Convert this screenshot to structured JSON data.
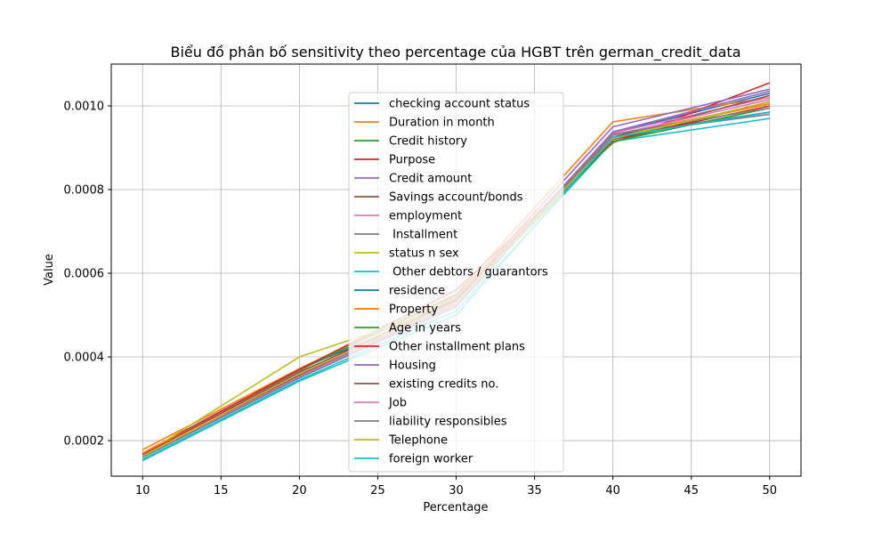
{
  "chart_data": {
    "type": "line",
    "title": "Biểu đồ phân bố sensitivity theo percentage của HGBT trên german_credit_data",
    "xlabel": "Percentage",
    "ylabel": "Value",
    "x": [
      10,
      20,
      30,
      40,
      50
    ],
    "xlim": [
      8,
      52
    ],
    "ylim": [
      0.000115,
      0.0011
    ],
    "xticks": [
      10,
      15,
      20,
      25,
      30,
      35,
      40,
      45,
      50
    ],
    "yticks": [
      0.0002,
      0.0004,
      0.0006,
      0.0008,
      0.001
    ],
    "ytick_labels": [
      "0.0002",
      "0.0004",
      "0.0006",
      "0.0008",
      "0.0010"
    ],
    "grid": true,
    "legend_position": "center-top",
    "series": [
      {
        "name": "checking account status",
        "color": "#1f77b4",
        "values": [
          0.000165,
          0.00037,
          0.00053,
          0.000935,
          0.00103
        ]
      },
      {
        "name": "Duration in month",
        "color": "#ff7f0e",
        "values": [
          0.000178,
          0.000372,
          0.00055,
          0.000962,
          0.00102
        ]
      },
      {
        "name": "Credit history",
        "color": "#2ca02c",
        "values": [
          0.000168,
          0.000368,
          0.000548,
          0.000915,
          0.00101
        ]
      },
      {
        "name": "Purpose",
        "color": "#d62728",
        "values": [
          0.00017,
          0.00037,
          0.00056,
          0.000912,
          0.001055
        ]
      },
      {
        "name": "Credit amount",
        "color": "#9467bd",
        "values": [
          0.000162,
          0.000358,
          0.00054,
          0.00095,
          0.00104
        ]
      },
      {
        "name": "Savings account/bonds",
        "color": "#8c564b",
        "values": [
          0.000165,
          0.000362,
          0.000538,
          0.00093,
          0.000985
        ]
      },
      {
        "name": "employment",
        "color": "#e377c2",
        "values": [
          0.000167,
          0.00036,
          0.000535,
          0.000935,
          0.00102
        ]
      },
      {
        "name": " Installment",
        "color": "#7f7f7f",
        "values": [
          0.000168,
          0.000365,
          0.00052,
          0.00093,
          0.00098
        ]
      },
      {
        "name": "status n sex",
        "color": "#bcbd22",
        "values": [
          0.000165,
          0.0004,
          0.000525,
          0.000925,
          0.001005
        ]
      },
      {
        "name": " Other debtors / guarantors",
        "color": "#17becf",
        "values": [
          0.000155,
          0.000345,
          0.00051,
          0.000915,
          0.00097
        ]
      },
      {
        "name": "residence",
        "color": "#1f77b4",
        "values": [
          0.00016,
          0.00035,
          0.000525,
          0.000925,
          0.000985
        ]
      },
      {
        "name": "Property",
        "color": "#ff7f0e",
        "values": [
          0.00017,
          0.000355,
          0.000545,
          0.00093,
          0.001005
        ]
      },
      {
        "name": "Age in years",
        "color": "#2ca02c",
        "values": [
          0.000163,
          0.00036,
          0.00053,
          0.000915,
          0.000995
        ]
      },
      {
        "name": "Other installment plans",
        "color": "#d62728",
        "values": [
          0.000166,
          0.000362,
          0.000532,
          0.00092,
          0.001
        ]
      },
      {
        "name": "Housing",
        "color": "#9467bd",
        "values": [
          0.000161,
          0.000355,
          0.000528,
          0.000938,
          0.001035
        ]
      },
      {
        "name": "existing credits no.",
        "color": "#8c564b",
        "values": [
          0.000164,
          0.000358,
          0.000535,
          0.000925,
          0.001025
        ]
      },
      {
        "name": "Job",
        "color": "#e377c2",
        "values": [
          0.000162,
          0.000352,
          0.000525,
          0.00093,
          0.001015
        ]
      },
      {
        "name": "liability responsibles",
        "color": "#7f7f7f",
        "values": [
          0.00016,
          0.00035,
          0.00052,
          0.000932,
          0.000995
        ]
      },
      {
        "name": "Telephone",
        "color": "#bcbd22",
        "values": [
          0.000163,
          0.00036,
          0.00053,
          0.000922,
          0.00101
        ]
      },
      {
        "name": "foreign worker",
        "color": "#17becf",
        "values": [
          0.000152,
          0.000342,
          0.0005,
          0.000925,
          0.000985
        ]
      }
    ]
  }
}
